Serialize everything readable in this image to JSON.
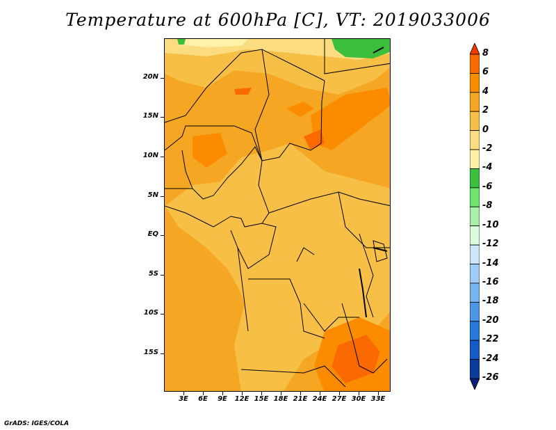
{
  "title": "Temperature at 600hPa [C], VT: 2019033006",
  "credit": "GrADS: IGES/COLA",
  "map": {
    "lat_labels": [
      "20N",
      "15N",
      "10N",
      "5N",
      "EQ",
      "5S",
      "10S",
      "15S"
    ],
    "lon_labels": [
      "3E",
      "6E",
      "9E",
      "12E",
      "15E",
      "18E",
      "21E",
      "24E",
      "27E",
      "30E",
      "33E"
    ],
    "lon_range": [
      0,
      35
    ],
    "lat_range": [
      -20,
      25
    ]
  },
  "colorbar": {
    "labels": [
      "8",
      "6",
      "4",
      "2",
      "0",
      "-2",
      "-4",
      "-6",
      "-8",
      "-10",
      "-12",
      "-14",
      "-16",
      "-18",
      "-20",
      "-22",
      "-24",
      "-26"
    ],
    "colors": [
      "#f03c00",
      "#fa6a00",
      "#fb8c00",
      "#f5a623",
      "#f7bf45",
      "#fbdc80",
      "#fff1a8",
      "#3cbf3c",
      "#6ee66e",
      "#a8f0a8",
      "#dcfadc",
      "#cce6fa",
      "#a0cdf7",
      "#78b4f0",
      "#4b96e6",
      "#2878dc",
      "#145ac8",
      "#0a3ca0",
      "#0a1e78"
    ]
  }
}
